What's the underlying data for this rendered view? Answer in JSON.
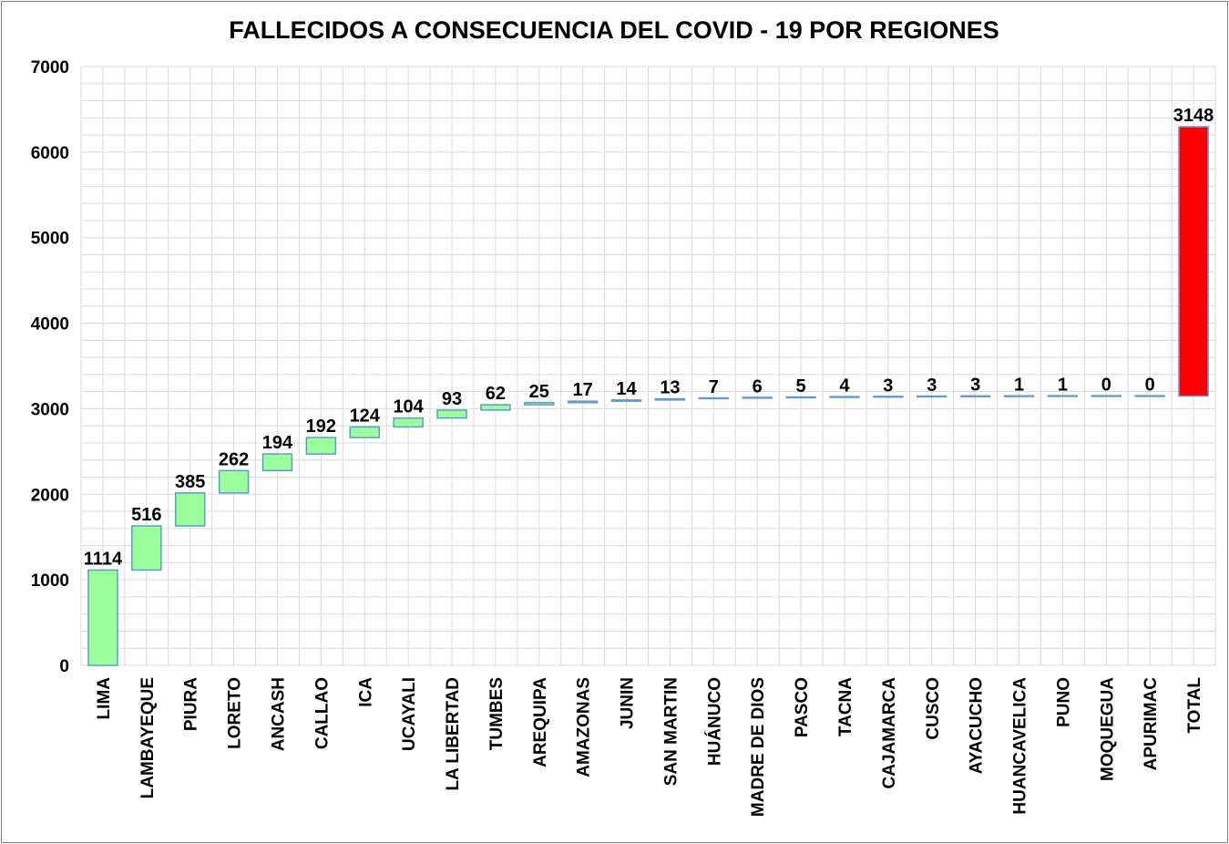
{
  "chart_data": {
    "type": "bar",
    "subtype": "waterfall",
    "title": "FALLECIDOS A CONSECUENCIA DEL COVID - 19 POR REGIONES",
    "xlabel": "",
    "ylabel": "",
    "ylim": [
      0,
      7000
    ],
    "ytick_step": 1000,
    "yticks": [
      "0",
      "1000",
      "2000",
      "3000",
      "4000",
      "5000",
      "6000",
      "7000"
    ],
    "grid": true,
    "legend": "none",
    "categories": [
      "LIMA",
      "LAMBAYEQUE",
      "PIURA",
      "LORETO",
      "ANCASH",
      "CALLAO",
      "ICA",
      "UCAYALI",
      "LA LIBERTAD",
      "TUMBES",
      "AREQUIPA",
      "AMAZONAS",
      "JUNIN",
      "SAN MARTIN",
      "HUÁNUCO",
      "MADRE DE DIOS",
      "PASCO",
      "TACNA",
      "CAJAMARCA",
      "CUSCO",
      "AYACUCHO",
      "HUANCAVELICA",
      "PUNO",
      "MOQUEGUA",
      "APURIMAC",
      "TOTAL"
    ],
    "values": [
      1114,
      516,
      385,
      262,
      194,
      192,
      124,
      104,
      93,
      62,
      25,
      17,
      14,
      13,
      7,
      6,
      5,
      4,
      3,
      3,
      3,
      1,
      1,
      0,
      0,
      3148
    ],
    "labels": [
      "1114",
      "516",
      "385",
      "262",
      "194",
      "192",
      "124",
      "104",
      "93",
      "62",
      "25",
      "17",
      "14",
      "13",
      "7",
      "6",
      "5",
      "4",
      "3",
      "3",
      "3",
      "1",
      "1",
      "0",
      "0",
      "3148"
    ],
    "colors": {
      "increase_fill": "#99ff99",
      "increase_border": "#5b9bd5",
      "total_fill": "#ff0000",
      "total_border": "#5b9bd5",
      "grid": "#d9d9d9"
    }
  }
}
